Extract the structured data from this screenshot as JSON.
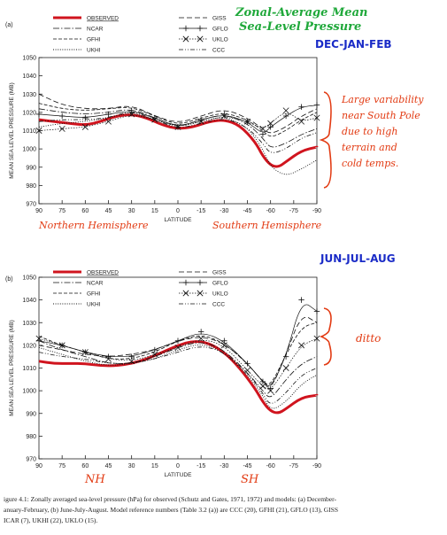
{
  "annotations": {
    "title_line1": "Zonal-Average Mean",
    "title_line2": "Sea-Level Pressure",
    "season_a": "DEC-JAN-FEB",
    "season_b": "JUN-JUL-AUG",
    "note_a": [
      "Large variability",
      "near South Pole",
      "due to high",
      "terrain and",
      "cold temps."
    ],
    "note_b": "ditto",
    "nh_label_a": "Northern Hemisphere",
    "sh_label_a": "Southern Hemisphere",
    "nh_label_b": "NH",
    "sh_label_b": "SH"
  },
  "caption": {
    "line1": "igure 4.1: Zonally averaged sea-level pressure (hPa) for observed (Schutz and Gates, 1971, 1972) and models: (a) December-",
    "line2": "anuary-February, (b) June-July-August. Model reference numbers (Table 3.2 (a)) are CCC (20), GFHI (21), GFLO (13), GISS",
    "line3": "ICAR (7), UKHI (22), UKLO (15)."
  },
  "chart_data": [
    {
      "type": "line",
      "panel_label": "(a)",
      "ylabel": "MEAN SEA LEVEL PRESSURE (MB)",
      "xlabel": "LATITUDE",
      "xlim": [
        90,
        -90
      ],
      "ylim": [
        970,
        1050
      ],
      "x_ticks": [
        90,
        75,
        60,
        45,
        30,
        15,
        0,
        -15,
        -30,
        -45,
        -60,
        -75,
        -90
      ],
      "y_ticks": [
        970,
        980,
        990,
        1000,
        1010,
        1020,
        1030,
        1040,
        1050
      ],
      "legend": [
        "OBSERVED",
        "NCAR",
        "GFHI",
        "UKHI",
        "GISS",
        "GFLO",
        "UKLO",
        "CCC"
      ],
      "legend_position": "top",
      "series": [
        {
          "name": "OBSERVED",
          "color": "#d0141e",
          "x": [
            90,
            80,
            70,
            60,
            50,
            40,
            30,
            20,
            10,
            0,
            -10,
            -20,
            -30,
            -40,
            -50,
            -55,
            -60,
            -65,
            -70,
            -80,
            -90
          ],
          "y": [
            1016,
            1015,
            1014,
            1013,
            1015,
            1018,
            1019,
            1017,
            1013,
            1011,
            1012,
            1015,
            1016,
            1013,
            1004,
            996,
            991,
            990,
            993,
            999,
            1001
          ]
        },
        {
          "name": "NCAR",
          "color": "#111111",
          "x": [
            90,
            75,
            60,
            45,
            30,
            15,
            0,
            -15,
            -30,
            -45,
            -55,
            -60,
            -70,
            -80,
            -90
          ],
          "y": [
            1022,
            1020,
            1019,
            1020,
            1022,
            1017,
            1012,
            1016,
            1019,
            1014,
            1006,
            1000,
            1003,
            1008,
            1011
          ]
        },
        {
          "name": "GFHI",
          "color": "#111111",
          "x": [
            90,
            75,
            60,
            45,
            30,
            15,
            0,
            -15,
            -30,
            -45,
            -55,
            -60,
            -70,
            -80,
            -90
          ],
          "y": [
            1025,
            1022,
            1021,
            1022,
            1023,
            1018,
            1013,
            1017,
            1020,
            1016,
            1010,
            1006,
            1010,
            1016,
            1020
          ]
        },
        {
          "name": "UKHI",
          "color": "#111111",
          "x": [
            90,
            75,
            60,
            45,
            30,
            15,
            0,
            -15,
            -30,
            -45,
            -55,
            -60,
            -70,
            -80,
            -90
          ],
          "y": [
            1012,
            1014,
            1015,
            1017,
            1020,
            1016,
            1012,
            1015,
            1018,
            1012,
            1000,
            990,
            985,
            989,
            994
          ]
        },
        {
          "name": "GISS",
          "color": "#111111",
          "x": [
            90,
            75,
            60,
            45,
            30,
            15,
            0,
            -15,
            -30,
            -45,
            -55,
            -60,
            -70,
            -80,
            -90
          ],
          "y": [
            1030,
            1024,
            1022,
            1022,
            1024,
            1018,
            1014,
            1018,
            1022,
            1017,
            1011,
            1008,
            1012,
            1018,
            1022
          ]
        },
        {
          "name": "GFLO",
          "color": "#111111",
          "x": [
            90,
            75,
            60,
            45,
            30,
            15,
            0,
            -15,
            -30,
            -45,
            -55,
            -60,
            -70,
            -80,
            -90
          ],
          "y": [
            1019,
            1018,
            1017,
            1019,
            1021,
            1017,
            1012,
            1016,
            1019,
            1015,
            1008,
            1012,
            1018,
            1023,
            1024
          ]
        },
        {
          "name": "UKLO",
          "color": "#111111",
          "x": [
            90,
            75,
            60,
            45,
            30,
            15,
            0,
            -15,
            -30,
            -45,
            -55,
            -60,
            -70,
            -80,
            -90
          ],
          "y": [
            1010,
            1011,
            1012,
            1015,
            1019,
            1016,
            1012,
            1015,
            1018,
            1015,
            1011,
            1014,
            1021,
            1015,
            1017
          ]
        },
        {
          "name": "CCC",
          "color": "#111111",
          "x": [
            90,
            75,
            60,
            45,
            30,
            15,
            0,
            -15,
            -30,
            -45,
            -55,
            -60,
            -70,
            -80,
            -90
          ],
          "y": [
            1015,
            1016,
            1016,
            1017,
            1021,
            1016,
            1011,
            1014,
            1017,
            1012,
            1003,
            997,
            1000,
            1006,
            1009
          ]
        }
      ]
    },
    {
      "type": "line",
      "panel_label": "(b)",
      "ylabel": "MEAN SEA LEVEL PRESSURE (MB)",
      "xlabel": "LATITUDE",
      "xlim": [
        90,
        -90
      ],
      "ylim": [
        970,
        1050
      ],
      "x_ticks": [
        90,
        75,
        60,
        45,
        30,
        15,
        0,
        -15,
        -30,
        -45,
        -60,
        -75,
        -90
      ],
      "y_ticks": [
        970,
        980,
        990,
        1000,
        1010,
        1020,
        1030,
        1040,
        1050
      ],
      "legend": [
        "OBSERVED",
        "NCAR",
        "GFHI",
        "UKHI",
        "GISS",
        "GFLO",
        "UKLO",
        "CCC"
      ],
      "legend_position": "top",
      "series": [
        {
          "name": "OBSERVED",
          "color": "#d0141e",
          "x": [
            90,
            80,
            70,
            60,
            50,
            40,
            30,
            20,
            10,
            0,
            -10,
            -20,
            -30,
            -40,
            -50,
            -55,
            -60,
            -65,
            -70,
            -80,
            -90
          ],
          "y": [
            1013,
            1012,
            1012,
            1012,
            1011,
            1011,
            1012,
            1014,
            1017,
            1020,
            1022,
            1021,
            1017,
            1010,
            1001,
            995,
            991,
            990,
            992,
            997,
            998
          ]
        },
        {
          "name": "NCAR",
          "color": "#111111",
          "x": [
            90,
            75,
            60,
            45,
            30,
            15,
            0,
            -15,
            -30,
            -45,
            -55,
            -60,
            -70,
            -80,
            -90
          ],
          "y": [
            1022,
            1018,
            1015,
            1012,
            1012,
            1015,
            1019,
            1022,
            1018,
            1008,
            1000,
            996,
            1005,
            1012,
            1015
          ]
        },
        {
          "name": "GFHI",
          "color": "#111111",
          "x": [
            90,
            75,
            60,
            45,
            30,
            15,
            0,
            -15,
            -30,
            -45,
            -55,
            -60,
            -70,
            -80,
            -90
          ],
          "y": [
            1024,
            1020,
            1017,
            1014,
            1014,
            1017,
            1022,
            1025,
            1021,
            1012,
            1004,
            1002,
            1016,
            1028,
            1030
          ]
        },
        {
          "name": "UKHI",
          "color": "#111111",
          "x": [
            90,
            75,
            60,
            45,
            30,
            15,
            0,
            -15,
            -30,
            -45,
            -55,
            -60,
            -70,
            -80,
            -90
          ],
          "y": [
            1019,
            1016,
            1013,
            1011,
            1012,
            1014,
            1018,
            1021,
            1017,
            1007,
            998,
            991,
            995,
            1003,
            1007
          ]
        },
        {
          "name": "GISS",
          "color": "#111111",
          "x": [
            90,
            75,
            60,
            45,
            30,
            15,
            0,
            -15,
            -30,
            -45,
            -55,
            -60,
            -70,
            -80,
            -90
          ],
          "y": [
            1020,
            1018,
            1016,
            1015,
            1016,
            1018,
            1022,
            1024,
            1021,
            1012,
            1004,
            1000,
            1016,
            1034,
            1030
          ]
        },
        {
          "name": "GFLO",
          "color": "#111111",
          "x": [
            90,
            75,
            60,
            45,
            30,
            15,
            0,
            -15,
            -30,
            -45,
            -55,
            -60,
            -70,
            -80,
            -90
          ],
          "y": [
            1022,
            1020,
            1017,
            1015,
            1015,
            1018,
            1022,
            1026,
            1022,
            1012,
            1004,
            1001,
            1015,
            1040,
            1035
          ]
        },
        {
          "name": "UKLO",
          "color": "#111111",
          "x": [
            90,
            75,
            60,
            45,
            30,
            15,
            0,
            -15,
            -30,
            -45,
            -55,
            -60,
            -70,
            -80,
            -90
          ],
          "y": [
            1023,
            1020,
            1017,
            1014,
            1013,
            1016,
            1019,
            1023,
            1020,
            1009,
            1002,
            1000,
            1010,
            1020,
            1023
          ]
        },
        {
          "name": "CCC",
          "color": "#111111",
          "x": [
            90,
            75,
            60,
            45,
            30,
            15,
            0,
            -15,
            -30,
            -45,
            -55,
            -60,
            -70,
            -80,
            -90
          ],
          "y": [
            1017,
            1015,
            1014,
            1012,
            1012,
            1014,
            1017,
            1020,
            1017,
            1008,
            999,
            993,
            999,
            1007,
            1010
          ]
        }
      ]
    }
  ]
}
